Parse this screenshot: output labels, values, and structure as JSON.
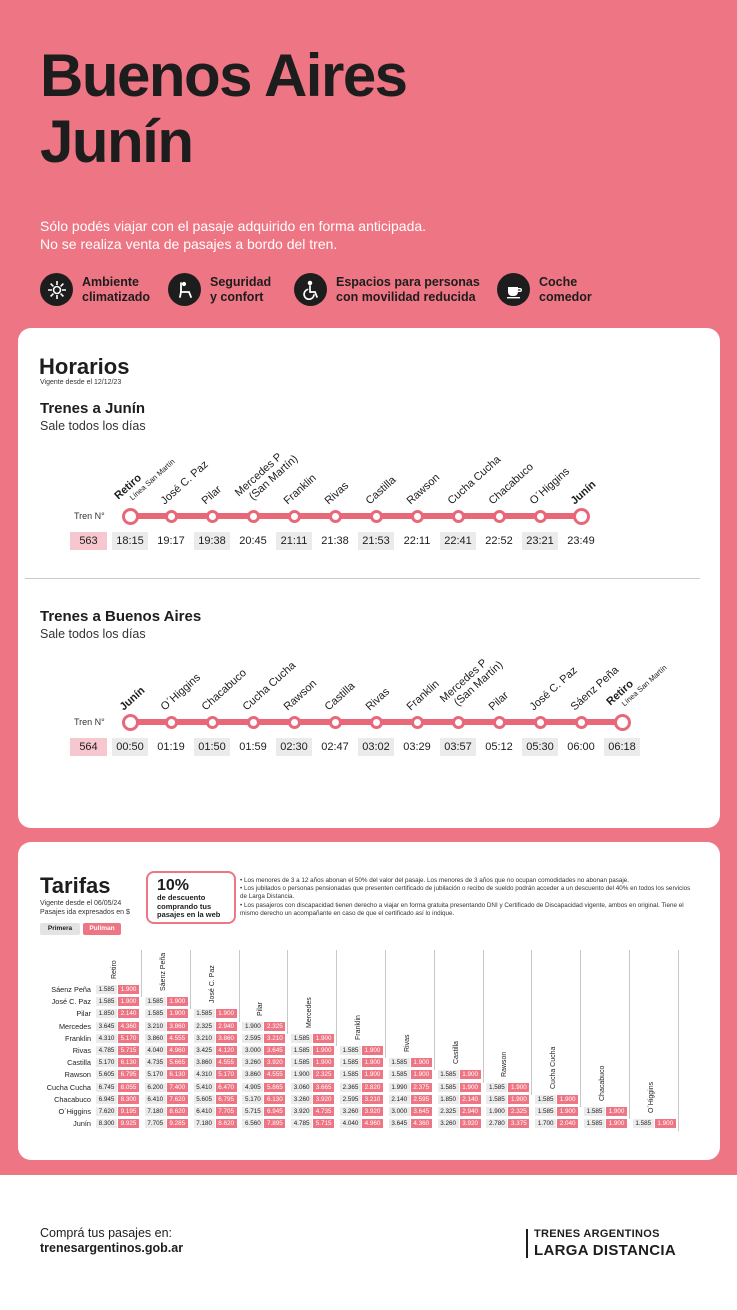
{
  "header": {
    "title_line1": "Buenos Aires",
    "title_line2": "Junín",
    "intro_line1": "Sólo podés viajar con el pasaje adquirido en forma anticipada.",
    "intro_line2": "No se realiza venta de pasajes a bordo del tren."
  },
  "features": [
    {
      "icon": "climate-icon",
      "line1": "Ambiente",
      "line2": "climatizado"
    },
    {
      "icon": "seat-icon",
      "line1": "Seguridad",
      "line2": "y confort"
    },
    {
      "icon": "wheelchair-icon",
      "line1": "Espacios para personas",
      "line2": "con movilidad reducida"
    },
    {
      "icon": "dining-car-icon",
      "line1": "Coche",
      "line2": "comedor"
    }
  ],
  "schedule": {
    "title": "Horarios",
    "valid": "Vigente desde el 12/12/23",
    "tren_label": "Tren N°",
    "routes": [
      {
        "title": "Trenes a Junín",
        "subtitle": "Sale todos los días",
        "train": "563",
        "stations": [
          {
            "name": "Retiro",
            "line": "Línea San Martín",
            "bold": true,
            "time": "18:15",
            "shaded": true
          },
          {
            "name": "José C. Paz",
            "time": "19:17",
            "shaded": false
          },
          {
            "name": "Pilar",
            "time": "19:38",
            "shaded": true
          },
          {
            "name": "Mercedes P",
            "name2": "(San Martín)",
            "time": "20:45",
            "shaded": false
          },
          {
            "name": "Franklin",
            "time": "21:11",
            "shaded": true
          },
          {
            "name": "Rivas",
            "time": "21:38",
            "shaded": false
          },
          {
            "name": "Castilla",
            "time": "21:53",
            "shaded": true
          },
          {
            "name": "Rawson",
            "time": "22:11",
            "shaded": false
          },
          {
            "name": "Cucha Cucha",
            "time": "22:41",
            "shaded": true
          },
          {
            "name": "Chacabuco",
            "time": "22:52",
            "shaded": false
          },
          {
            "name": "O´Higgins",
            "time": "23:21",
            "shaded": true
          },
          {
            "name": "Junín",
            "bold": true,
            "time": "23:49",
            "shaded": false
          }
        ]
      },
      {
        "title": "Trenes a Buenos Aires",
        "subtitle": "Sale todos los días",
        "train": "564",
        "stations": [
          {
            "name": "Junín",
            "bold": true,
            "time": "00:50",
            "shaded": true
          },
          {
            "name": "O´Higgins",
            "time": "01:19",
            "shaded": false
          },
          {
            "name": "Chacabuco",
            "time": "01:50",
            "shaded": true
          },
          {
            "name": "Cucha Cucha",
            "time": "01:59",
            "shaded": false
          },
          {
            "name": "Rawson",
            "time": "02:30",
            "shaded": true
          },
          {
            "name": "Castilla",
            "time": "02:47",
            "shaded": false
          },
          {
            "name": "Rivas",
            "time": "03:02",
            "shaded": true
          },
          {
            "name": "Franklin",
            "time": "03:29",
            "shaded": false
          },
          {
            "name": "Mercedes P",
            "name2": "(San Martín)",
            "time": "03:57",
            "shaded": true
          },
          {
            "name": "Pilar",
            "time": "05:12",
            "shaded": false
          },
          {
            "name": "José C. Paz",
            "time": "05:30",
            "shaded": true
          },
          {
            "name": "Sáenz Peña",
            "time": "06:00",
            "shaded": false
          },
          {
            "name": "Retiro",
            "line": "Línea San Martín",
            "bold": true,
            "time": "06:18",
            "shaded": true
          }
        ]
      }
    ]
  },
  "fares": {
    "title": "Tarifas",
    "valid": "Vigente desde el 06/05/24",
    "currency_note": "Pasajes ida expresados en $",
    "legend_primera": "Primera",
    "legend_pullman": "Pullman",
    "discount_pct": "10%",
    "discount_text1": "de descuento",
    "discount_text2": "comprando tus",
    "discount_text3": "pasajes en la web",
    "notes": [
      "• Los menores de 3 a 12 años abonan el 50% del valor del pasaje. Los menores de 3 años que no ocupan comodidades no abonan pasaje.",
      "• Los jubilados o personas pensionadas que presenten certificado de jubilación o recibo de sueldo podrán acceder a un descuento del 40% en todos los servicios de Larga Distancia.",
      "• Los pasajeros con discapacidad tienen derecho a viajar en forma gratuita presentando DNI y Certificado de Discapacidad vigente, ambos en original. Tiene el mismo derecho un acompañante en caso de que el certificado así lo indique."
    ],
    "columns": [
      "Retiro",
      "Sáenz Peña",
      "José C. Paz",
      "Pilar",
      "Mercedes",
      "Franklin",
      "Rivas",
      "Castilla",
      "Rawson",
      "Cucha Cucha",
      "Chacabuco",
      "O´Higgins"
    ],
    "rows": [
      {
        "label": "Sáenz Peña",
        "cells": [
          [
            "1.585",
            "1.900"
          ]
        ]
      },
      {
        "label": "José C. Paz",
        "cells": [
          [
            "1.585",
            "1.900"
          ],
          [
            "1.585",
            "1.900"
          ]
        ]
      },
      {
        "label": "Pilar",
        "cells": [
          [
            "1.850",
            "2.140"
          ],
          [
            "1.585",
            "1.900"
          ],
          [
            "1.585",
            "1.900"
          ]
        ]
      },
      {
        "label": "Mercedes",
        "cells": [
          [
            "3.645",
            "4.360"
          ],
          [
            "3.210",
            "3.860"
          ],
          [
            "2.325",
            "2.940"
          ],
          [
            "1.900",
            "2.325"
          ]
        ]
      },
      {
        "label": "Franklin",
        "cells": [
          [
            "4.310",
            "5.170"
          ],
          [
            "3.860",
            "4.555"
          ],
          [
            "3.210",
            "3.860"
          ],
          [
            "2.595",
            "3.210"
          ],
          [
            "1.585",
            "1.900"
          ]
        ]
      },
      {
        "label": "Rivas",
        "cells": [
          [
            "4.785",
            "5.715"
          ],
          [
            "4.040",
            "4.960"
          ],
          [
            "3.425",
            "4.120"
          ],
          [
            "3.000",
            "3.645"
          ],
          [
            "1.585",
            "1.900"
          ],
          [
            "1.585",
            "1.900"
          ]
        ]
      },
      {
        "label": "Castilla",
        "cells": [
          [
            "5.170",
            "6.130"
          ],
          [
            "4.735",
            "5.665"
          ],
          [
            "3.860",
            "4.555"
          ],
          [
            "3.260",
            "3.920"
          ],
          [
            "1.585",
            "1.900"
          ],
          [
            "1.585",
            "1.900"
          ],
          [
            "1.585",
            "1.900"
          ]
        ]
      },
      {
        "label": "Rawson",
        "cells": [
          [
            "5.605",
            "6.795"
          ],
          [
            "5.170",
            "6.130"
          ],
          [
            "4.310",
            "5.170"
          ],
          [
            "3.860",
            "4.555"
          ],
          [
            "1.900",
            "2.325"
          ],
          [
            "1.585",
            "1.900"
          ],
          [
            "1.585",
            "1.900"
          ],
          [
            "1.585",
            "1.900"
          ]
        ]
      },
      {
        "label": "Cucha Cucha",
        "cells": [
          [
            "6.745",
            "8.055"
          ],
          [
            "6.200",
            "7.400"
          ],
          [
            "5.410",
            "6.470"
          ],
          [
            "4.905",
            "5.865"
          ],
          [
            "3.060",
            "3.665"
          ],
          [
            "2.365",
            "2.820"
          ],
          [
            "1.990",
            "2.375"
          ],
          [
            "1.585",
            "1.900"
          ],
          [
            "1.585",
            "1.900"
          ]
        ]
      },
      {
        "label": "Chacabuco",
        "cells": [
          [
            "6.945",
            "8.300"
          ],
          [
            "6.410",
            "7.620"
          ],
          [
            "5.605",
            "6.795"
          ],
          [
            "5.170",
            "6.130"
          ],
          [
            "3.260",
            "3.920"
          ],
          [
            "2.595",
            "3.210"
          ],
          [
            "2.140",
            "2.595"
          ],
          [
            "1.850",
            "2.140"
          ],
          [
            "1.585",
            "1.900"
          ],
          [
            "1.585",
            "1.900"
          ]
        ]
      },
      {
        "label": "O´Higgins",
        "cells": [
          [
            "7.620",
            "9.195"
          ],
          [
            "7.180",
            "8.620"
          ],
          [
            "6.410",
            "7.705"
          ],
          [
            "5.715",
            "6.945"
          ],
          [
            "3.920",
            "4.735"
          ],
          [
            "3.260",
            "3.920"
          ],
          [
            "3.000",
            "3.645"
          ],
          [
            "2.325",
            "2.940"
          ],
          [
            "1.900",
            "2.325"
          ],
          [
            "1.585",
            "1.900"
          ],
          [
            "1.585",
            "1.900"
          ]
        ]
      },
      {
        "label": "Junín",
        "cells": [
          [
            "8.300",
            "9.925"
          ],
          [
            "7.705",
            "9.285"
          ],
          [
            "7.180",
            "8.620"
          ],
          [
            "6.560",
            "7.895"
          ],
          [
            "4.785",
            "5.715"
          ],
          [
            "4.040",
            "4.960"
          ],
          [
            "3.645",
            "4.360"
          ],
          [
            "3.260",
            "3.920"
          ],
          [
            "2.780",
            "3.375"
          ],
          [
            "1.700",
            "2.040"
          ],
          [
            "1.585",
            "1.900"
          ],
          [
            "1.585",
            "1.900"
          ]
        ]
      }
    ]
  },
  "footer": {
    "cta": "Comprá tus pasajes en:",
    "url": "trenesargentinos.gob.ar",
    "brand1": "TRENES ARGENTINOS",
    "brand2": "LARGA DISTANCIA"
  },
  "colors": {
    "brand_pink": "#ee7583",
    "route_pink": "#e8687a",
    "train_badge": "#f6c7ce",
    "dark": "#1d1d1d"
  }
}
